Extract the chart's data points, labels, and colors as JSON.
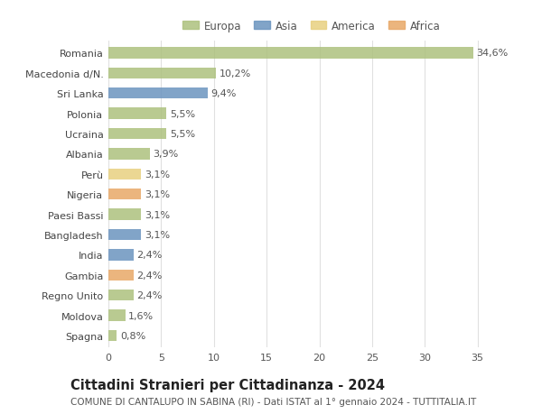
{
  "countries": [
    "Romania",
    "Macedonia d/N.",
    "Sri Lanka",
    "Polonia",
    "Ucraina",
    "Albania",
    "Perù",
    "Nigeria",
    "Paesi Bassi",
    "Bangladesh",
    "India",
    "Gambia",
    "Regno Unito",
    "Moldova",
    "Spagna"
  ],
  "values": [
    34.6,
    10.2,
    9.4,
    5.5,
    5.5,
    3.9,
    3.1,
    3.1,
    3.1,
    3.1,
    2.4,
    2.4,
    2.4,
    1.6,
    0.8
  ],
  "labels": [
    "34,6%",
    "10,2%",
    "9,4%",
    "5,5%",
    "5,5%",
    "3,9%",
    "3,1%",
    "3,1%",
    "3,1%",
    "3,1%",
    "2,4%",
    "2,4%",
    "2,4%",
    "1,6%",
    "0,8%"
  ],
  "continents": [
    "Europa",
    "Europa",
    "Asia",
    "Europa",
    "Europa",
    "Europa",
    "America",
    "Africa",
    "Europa",
    "Asia",
    "Asia",
    "Africa",
    "Europa",
    "Europa",
    "Europa"
  ],
  "colors": {
    "Europa": "#adc17e",
    "Asia": "#6b94bf",
    "America": "#e8d080",
    "Africa": "#e8a868"
  },
  "legend_entries": [
    "Europa",
    "Asia",
    "America",
    "Africa"
  ],
  "legend_colors": [
    "#adc17e",
    "#6b94bf",
    "#e8d080",
    "#e8a868"
  ],
  "title1": "Cittadini Stranieri per Cittadinanza - 2024",
  "title2": "COMUNE DI CANTALUPO IN SABINA (RI) - Dati ISTAT al 1° gennaio 2024 - TUTTITALIA.IT",
  "xlim": [
    0,
    37
  ],
  "xticks": [
    0,
    5,
    10,
    15,
    20,
    25,
    30,
    35
  ],
  "background_color": "#ffffff",
  "grid_color": "#e0e0e0",
  "bar_height": 0.55,
  "label_fontsize": 8,
  "tick_fontsize": 8,
  "title1_fontsize": 10.5,
  "title2_fontsize": 7.5
}
